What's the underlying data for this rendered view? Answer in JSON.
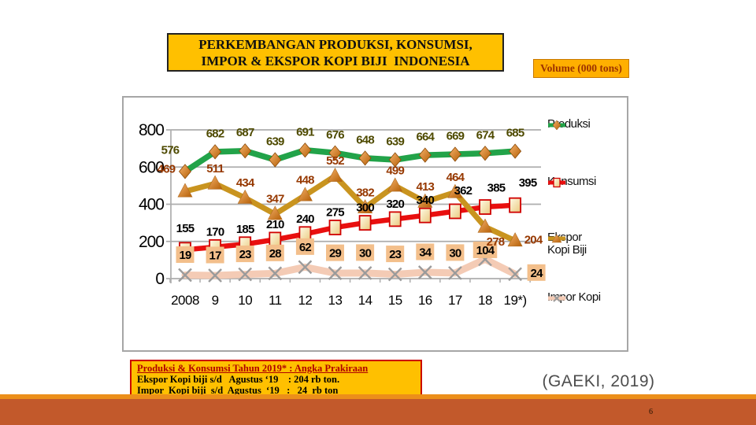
{
  "slide": {
    "title_line1": "PERKEMBANGAN PRODUKSI, KONSUMSI,",
    "title_line2": "IMPOR & EKSPOR KOPI BIJI  INDONESIA",
    "volume_label": "Volume (000 tons)",
    "source": "(GAEKI, 2019)",
    "page_number": "6",
    "footer_note": {
      "line1": "Produksi & Konsumsi Tahun 2019* : Angka Prakiraan",
      "line2": "Ekspor Kopi biji s/d   Agustus ‘19    : 204 rb ton.",
      "line3": "Impor  Kopi biji  s/d  Agustus  ‘19   :   24  rb ton"
    }
  },
  "colors": {
    "title_background": "#FFC000",
    "volume_background": "#FFAF00",
    "footer_background": "#FFC000",
    "footer_border": "#CC0000",
    "bottom_bar": "#C2592B",
    "bottom_bar_accent": "#EC8F1A",
    "chart_border": "#A6A6A6",
    "gridline": "#ADADAD"
  },
  "chart_data": {
    "type": "line",
    "title": "",
    "xlabel": "",
    "ylabel": "",
    "x_labels": [
      "2008",
      "9",
      "10",
      "11",
      "12",
      "13",
      "14",
      "15",
      "16",
      "17",
      "18",
      "19*)"
    ],
    "ylim": [
      0,
      800
    ],
    "yticks": [
      0,
      200,
      400,
      600,
      800
    ],
    "grid": true,
    "legend_position": "right",
    "series": [
      {
        "key": "produksi",
        "name": "Produksi",
        "color": "#22A349",
        "marker": "diamond",
        "label_color": "#4E4A00",
        "values": [
          576,
          682,
          687,
          639,
          691,
          676,
          648,
          639,
          664,
          669,
          674,
          685
        ]
      },
      {
        "key": "konsumsi",
        "name": "Konsumsi",
        "color": "#E90F0F",
        "marker": "square",
        "label_color": "#000000",
        "values": [
          155,
          170,
          185,
          210,
          240,
          275,
          300,
          320,
          340,
          362,
          385,
          395
        ]
      },
      {
        "key": "ekspor",
        "name": "Ekspor Kopi Biji",
        "color": "#C9941F",
        "marker": "triangle",
        "label_color": "#963800",
        "values": [
          469,
          511,
          434,
          347,
          448,
          552,
          382,
          499,
          413,
          464,
          278,
          204
        ]
      },
      {
        "key": "impor",
        "name": "Impor Kopi",
        "color": "#F4CBB5",
        "marker": "x",
        "label_color": "#000000",
        "label_box": "#F3BF8B",
        "values": [
          19,
          17,
          23,
          28,
          62,
          29,
          30,
          23,
          34,
          30,
          104,
          24
        ]
      }
    ]
  }
}
